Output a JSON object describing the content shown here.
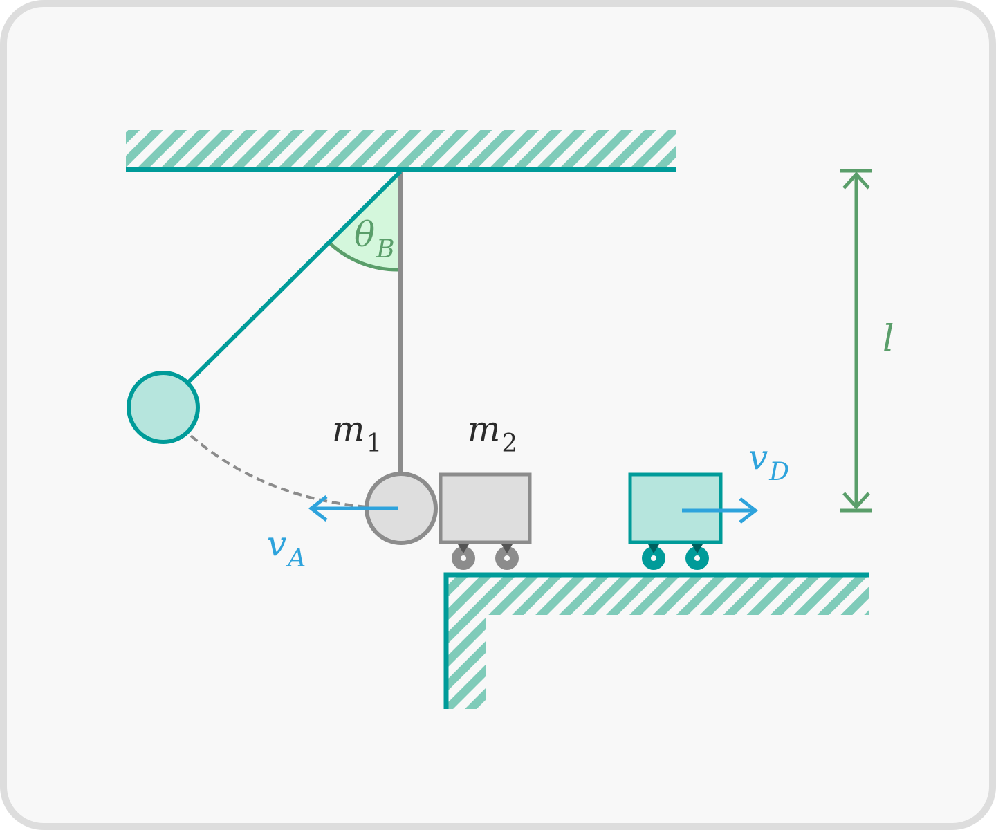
{
  "labels": {
    "theta": {
      "main": "θ",
      "sub": "B"
    },
    "length": "l",
    "mass1": {
      "main": "m",
      "sub": "1"
    },
    "mass2": {
      "main": "m",
      "sub": "2"
    },
    "velocity_a": {
      "main": "v",
      "sub": "A"
    },
    "velocity_d": {
      "main": "v",
      "sub": "D"
    }
  },
  "colors": {
    "card_bg": "#f8f8f8",
    "card_border": "#dddddd",
    "teal": "#009b99",
    "teal_fill": "#b6e5dd",
    "hatch": "#7fcbb9",
    "gray_stroke": "#8c8c8c",
    "gray_fill": "#dedede",
    "green": "#5a9e6a",
    "angle_fill": "#d4f7dc",
    "blue": "#2ea3dc",
    "dark_text": "#2b2b2b"
  }
}
